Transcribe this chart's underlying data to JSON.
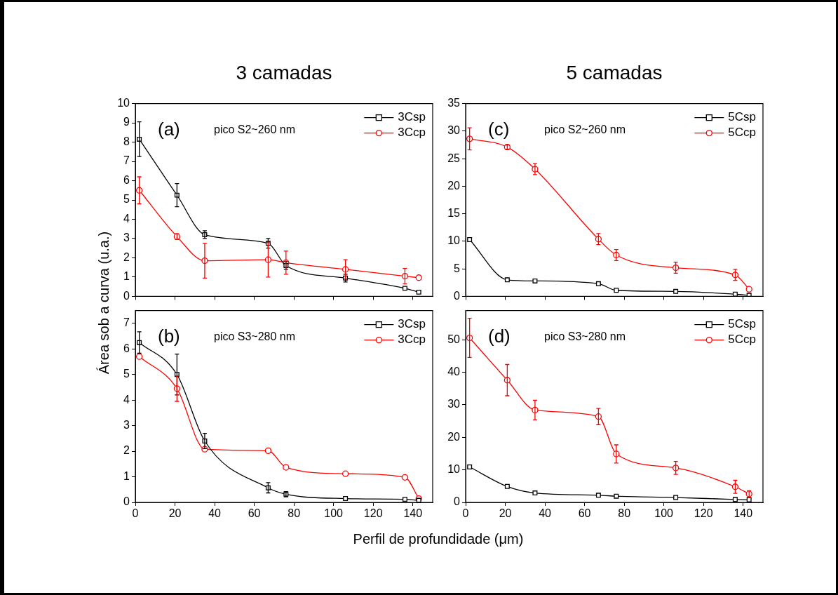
{
  "chart_data": [
    {
      "type": "line",
      "title": "3 camadas",
      "ylabel": "Área sob a curva (u.a.)",
      "annotations": [
        "(a)",
        "pico S2~260 nm"
      ],
      "xlim": [
        0,
        150
      ],
      "xticks": [
        0,
        20,
        40,
        60,
        80,
        100,
        120,
        140
      ],
      "ylim": [
        0,
        10
      ],
      "yticks": [
        0,
        1,
        2,
        3,
        4,
        5,
        6,
        7,
        8,
        9,
        10
      ],
      "tick_labels": "y",
      "legend": "top right",
      "series": [
        {
          "name": "3Csp",
          "color": "#000000",
          "marker": "square",
          "x": [
            2,
            21,
            35,
            67,
            76,
            106,
            136,
            143
          ],
          "values": [
            8.15,
            5.25,
            3.2,
            2.75,
            1.6,
            0.95,
            0.42,
            0.22
          ],
          "errors": [
            0.9,
            0.6,
            0.2,
            0.25,
            0.2,
            0.2,
            null,
            null
          ]
        },
        {
          "name": "3Ccp",
          "color": "#ff0000",
          "marker": "circle",
          "x": [
            2,
            21,
            35,
            67,
            76,
            106,
            136,
            143
          ],
          "values": [
            5.5,
            3.1,
            1.85,
            1.9,
            1.75,
            1.4,
            1.05,
            0.97
          ],
          "errors": [
            0.7,
            0.15,
            0.9,
            0.9,
            0.6,
            0.5,
            0.4,
            null
          ]
        }
      ]
    },
    {
      "type": "line",
      "xlabel": "Perfil de profundidade (μm)",
      "annotations": [
        "(b)",
        "pico S3~280 nm"
      ],
      "xlim": [
        0,
        150
      ],
      "xticks": [
        0,
        20,
        40,
        60,
        80,
        100,
        120,
        140
      ],
      "ylim": [
        0,
        7.5
      ],
      "yticks": [
        0,
        1,
        2,
        3,
        4,
        5,
        6,
        7
      ],
      "legend": "top right",
      "series": [
        {
          "name": "3Csp",
          "color": "#000000",
          "marker": "square",
          "x": [
            2,
            21,
            35,
            67,
            76,
            106,
            136,
            143
          ],
          "values": [
            6.25,
            5.0,
            2.4,
            0.57,
            0.32,
            0.15,
            0.12,
            0.08
          ],
          "errors": [
            0.42,
            0.8,
            0.3,
            0.2,
            0.1,
            null,
            null,
            null
          ]
        },
        {
          "name": "3Ccp",
          "color": "#ff0000",
          "marker": "circle",
          "x": [
            2,
            21,
            35,
            67,
            76,
            106,
            136,
            143
          ],
          "values": [
            5.7,
            4.45,
            2.08,
            2.02,
            1.37,
            1.12,
            0.98,
            0.15
          ],
          "errors": [
            null,
            0.5,
            null,
            null,
            null,
            null,
            null,
            null
          ]
        }
      ]
    },
    {
      "type": "line",
      "title": "5 camadas",
      "annotations": [
        "(c)",
        "pico S2~260 nm"
      ],
      "xlim": [
        0,
        150
      ],
      "xticks": [
        0,
        20,
        40,
        60,
        80,
        100,
        120,
        140
      ],
      "ylim": [
        0,
        35
      ],
      "yticks": [
        0,
        5,
        10,
        15,
        20,
        25,
        30,
        35
      ],
      "tick_labels": "y",
      "legend": "top right",
      "series": [
        {
          "name": "5Csp",
          "color": "#000000",
          "marker": "square",
          "x": [
            2,
            21,
            35,
            67,
            76,
            106,
            136,
            143
          ],
          "values": [
            10.3,
            3.0,
            2.8,
            2.3,
            1.1,
            0.9,
            0.4,
            0.2
          ]
        },
        {
          "name": "5Ccp",
          "color": "#ff0000",
          "marker": "circle",
          "x": [
            2,
            21,
            35,
            67,
            76,
            106,
            136,
            143
          ],
          "values": [
            28.6,
            27.1,
            23.1,
            10.4,
            7.5,
            5.2,
            3.9,
            1.3
          ],
          "errors": [
            2,
            0.4,
            1,
            1,
            1,
            1,
            1,
            null
          ]
        }
      ]
    },
    {
      "type": "line",
      "annotations": [
        "(d)",
        "pico S3~280 nm"
      ],
      "xlim": [
        0,
        150
      ],
      "xticks": [
        0,
        20,
        40,
        60,
        80,
        100,
        120,
        140
      ],
      "ylim": [
        0,
        59
      ],
      "yticks": [
        0,
        10,
        20,
        30,
        40,
        50
      ],
      "legend": "top right",
      "series": [
        {
          "name": "5Csp",
          "color": "#000000",
          "marker": "square",
          "x": [
            2,
            21,
            35,
            67,
            76,
            106,
            136,
            143
          ],
          "values": [
            10.9,
            4.9,
            2.9,
            2.2,
            1.9,
            1.5,
            0.9,
            0.8
          ]
        },
        {
          "name": "5Ccp",
          "color": "#ff0000",
          "marker": "circle",
          "x": [
            2,
            21,
            35,
            67,
            76,
            106,
            136,
            143
          ],
          "values": [
            50.6,
            37.6,
            28.4,
            26.4,
            14.9,
            10.6,
            4.8,
            2.6
          ],
          "errors": [
            6,
            4.8,
            3,
            2.5,
            2.8,
            2,
            2,
            1
          ]
        }
      ]
    }
  ]
}
